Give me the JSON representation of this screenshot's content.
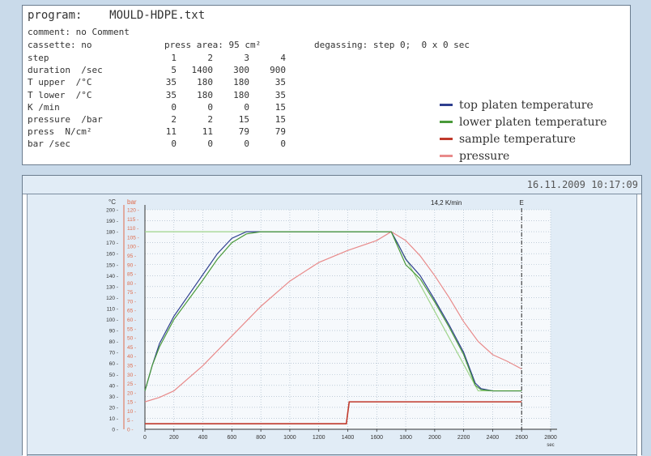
{
  "program": {
    "label": "program:",
    "value": "MOULD-HDPE.txt"
  },
  "comment": "comment: no Comment",
  "cassette": "cassette: no",
  "press_area": "press area: 95 cm²",
  "degassing": "degassing: step 0;  0 x 0 sec",
  "table": {
    "rows": [
      {
        "label": "step",
        "values": [
          "1",
          "2",
          "3",
          "4"
        ]
      },
      {
        "label": "duration  /sec",
        "values": [
          "5",
          "1400",
          "300",
          "900"
        ]
      },
      {
        "label": "T upper  /°C",
        "values": [
          "35",
          "180",
          "180",
          "35"
        ]
      },
      {
        "label": "T lower  /°C",
        "values": [
          "35",
          "180",
          "180",
          "35"
        ]
      },
      {
        "label": "K /min",
        "values": [
          "0",
          "0",
          "0",
          "15"
        ]
      },
      {
        "label": "pressure  /bar",
        "values": [
          "2",
          "2",
          "15",
          "15"
        ]
      },
      {
        "label": "press  N/cm²",
        "values": [
          "11",
          "11",
          "79",
          "79"
        ]
      },
      {
        "label": "bar /sec",
        "values": [
          "0",
          "0",
          "0",
          "0"
        ]
      }
    ]
  },
  "legend": [
    {
      "label": "top platen temperature",
      "color": "#2e3f8f"
    },
    {
      "label": "lower platen temperature",
      "color": "#4a9a3a"
    },
    {
      "label": "sample temperature",
      "color": "#c0392b"
    },
    {
      "label": "pressure",
      "color": "#e88a8a"
    }
  ],
  "timestamp": "16.11.2009 10:17:09",
  "chart_data": {
    "type": "line",
    "left_axis_unit": "°C",
    "right_axis_unit": "bar",
    "x_unit": "sec",
    "xlim": [
      0,
      2800
    ],
    "ylim_left": [
      0,
      200
    ],
    "ylim_right": [
      0,
      120
    ],
    "x_ticks": [
      "0",
      "200",
      "400",
      "600",
      "800",
      "1000",
      "1200",
      "1400",
      "1600",
      "1800",
      "2000",
      "2200",
      "2400",
      "2600",
      "2800"
    ],
    "y_ticks_left": [
      "0",
      "10",
      "20",
      "30",
      "40",
      "50",
      "60",
      "70",
      "80",
      "90",
      "100",
      "110",
      "120",
      "130",
      "140",
      "150",
      "160",
      "170",
      "180",
      "190",
      "200"
    ],
    "y_ticks_right": [
      "0",
      "5",
      "10",
      "15",
      "20",
      "25",
      "30",
      "35",
      "40",
      "45",
      "50",
      "55",
      "60",
      "65",
      "70",
      "75",
      "80",
      "85",
      "90",
      "95",
      "100",
      "105",
      "110",
      "115",
      "120"
    ],
    "annotation_rate": "14,2 K/min",
    "annotation_end": "E",
    "end_marker_x": 2600,
    "setpoint": {
      "x": [
        0,
        1700,
        2300,
        2600
      ],
      "y": [
        180,
        180,
        35,
        35
      ]
    },
    "series": [
      {
        "key": "top",
        "axis": "left",
        "x": [
          0,
          50,
          100,
          200,
          300,
          400,
          500,
          600,
          700,
          800,
          900,
          1000,
          1200,
          1400,
          1600,
          1700,
          1750,
          1800,
          1900,
          2000,
          2100,
          2200,
          2280,
          2320,
          2400,
          2500,
          2600
        ],
        "y": [
          35,
          58,
          78,
          103,
          122,
          141,
          160,
          174,
          180,
          180,
          180,
          180,
          180,
          180,
          180,
          180,
          168,
          155,
          140,
          118,
          95,
          70,
          42,
          37,
          35,
          35,
          35
        ]
      },
      {
        "key": "lower",
        "axis": "left",
        "x": [
          0,
          50,
          100,
          200,
          300,
          400,
          500,
          600,
          700,
          800,
          900,
          1000,
          1200,
          1400,
          1600,
          1700,
          1750,
          1800,
          1900,
          2000,
          2100,
          2200,
          2280,
          2320,
          2400,
          2500,
          2600
        ],
        "y": [
          35,
          58,
          75,
          100,
          118,
          136,
          155,
          170,
          178,
          180,
          180,
          180,
          180,
          180,
          180,
          180,
          165,
          150,
          137,
          116,
          93,
          68,
          40,
          36,
          35,
          35,
          35
        ]
      },
      {
        "key": "sample",
        "axis": "right",
        "x": [
          0,
          200,
          400,
          600,
          800,
          1000,
          1200,
          1390,
          1410,
          1500,
          1700,
          1900,
          2100,
          2300,
          2500,
          2600
        ],
        "y": [
          3,
          3,
          3,
          3,
          3,
          3,
          3,
          3,
          15,
          15,
          15,
          15,
          15,
          15,
          15,
          15
        ]
      },
      {
        "key": "pressure",
        "axis": "left",
        "x": [
          0,
          100,
          200,
          400,
          600,
          800,
          1000,
          1200,
          1400,
          1600,
          1700,
          1800,
          1900,
          2000,
          2100,
          2200,
          2300,
          2400,
          2500,
          2600
        ],
        "y": [
          25,
          29,
          35,
          58,
          85,
          112,
          135,
          152,
          163,
          172,
          180,
          172,
          158,
          140,
          120,
          98,
          80,
          68,
          62,
          55
        ]
      }
    ]
  }
}
